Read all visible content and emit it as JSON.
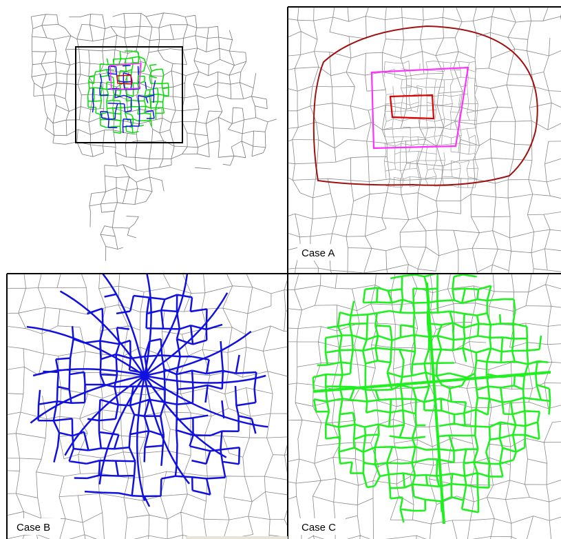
{
  "labels": [
    "Case A",
    "Case B",
    "Case C"
  ]
}
